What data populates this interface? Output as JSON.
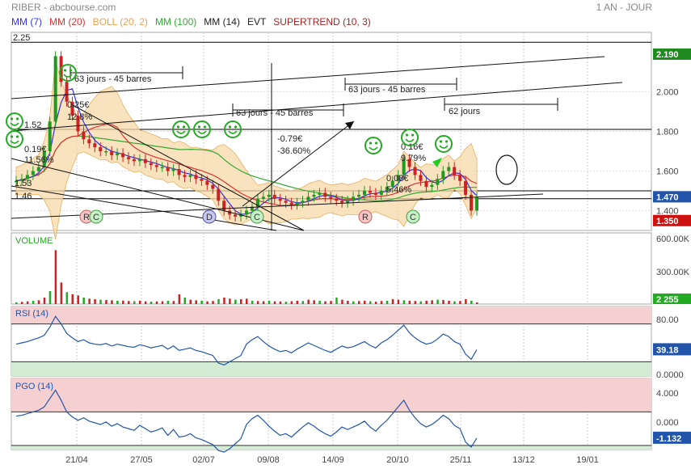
{
  "header": {
    "title": "RIBER - abcbourse.com",
    "period": "1 AN - JOUR"
  },
  "indicators": [
    {
      "label": "MM (7)",
      "color": "#3333dd"
    },
    {
      "label": "MM (20)",
      "color": "#dd3333"
    },
    {
      "label": "BOLL (20, 2)",
      "color": "#f0a050"
    },
    {
      "label": "MM (100)",
      "color": "#33aa33"
    },
    {
      "label": "MM (14)",
      "color": "#222222"
    },
    {
      "label": "EVT",
      "color": "#222222"
    },
    {
      "label": "SUPERTREND (10, 3)",
      "color": "#aa2222"
    }
  ],
  "chart_data": [
    {
      "type": "candlestick",
      "panel": "price",
      "ylim": [
        1.3,
        2.3
      ],
      "yticks": [
        "2.000",
        "1.800",
        "1.600",
        "1.400"
      ],
      "top_value_label": "2.25",
      "price_tags": [
        {
          "value": "2.190",
          "y": 2.19,
          "color": "#1f8a1f"
        },
        {
          "value": "1.470",
          "y": 1.47,
          "color": "#2255aa"
        },
        {
          "value": "1.350",
          "y": 1.35,
          "color": "#cc1111"
        }
      ],
      "hlines": [
        2.25,
        1.81,
        1.5,
        1.46
      ],
      "annotations": [
        {
          "text": "63 jours - 45 barres"
        },
        {
          "text": "63 jours - 45 barres"
        },
        {
          "text": "63 jours - 45 barres"
        },
        {
          "text": "62 jours"
        },
        {
          "text": "0.25€"
        },
        {
          "text": "12.8%"
        },
        {
          "text": "0.19€"
        },
        {
          "text": "11.56%"
        },
        {
          "text": "-0.79€"
        },
        {
          "text": "-36.60%"
        },
        {
          "text": "0.16€"
        },
        {
          "text": "9.79%"
        },
        {
          "text": "0.08€"
        },
        {
          "text": "5.46%"
        },
        {
          "text": "1.53"
        },
        {
          "text": "1.46"
        },
        {
          "text": "1.52"
        }
      ],
      "markers": [
        "R",
        "C",
        "D",
        "C",
        "R",
        "C"
      ],
      "x_ticks": [
        "21/04",
        "27/05",
        "02/07",
        "09/08",
        "14/09",
        "20/10",
        "25/11",
        "13/12",
        "19/01"
      ],
      "series": [
        {
          "values": [
            1.55,
            1.56,
            1.58,
            1.6,
            1.62,
            1.7,
            1.85,
            2.18,
            2.05,
            1.95,
            1.88,
            1.8,
            1.76,
            1.74,
            1.72,
            1.7,
            1.7,
            1.68,
            1.69,
            1.67,
            1.66,
            1.65,
            1.66,
            1.64,
            1.63,
            1.62,
            1.62,
            1.6,
            1.61,
            1.58,
            1.57,
            1.58,
            1.56,
            1.55,
            1.53,
            1.51,
            1.45,
            1.4,
            1.38,
            1.37,
            1.38,
            1.4,
            1.42,
            1.46,
            1.47,
            1.48,
            1.46,
            1.45,
            1.44,
            1.43,
            1.44,
            1.45,
            1.47,
            1.48,
            1.49,
            1.47,
            1.46,
            1.45,
            1.44,
            1.45,
            1.47,
            1.48,
            1.5,
            1.49,
            1.48,
            1.5,
            1.52,
            1.55,
            1.58,
            1.66,
            1.62,
            1.58,
            1.55,
            1.52,
            1.53,
            1.56,
            1.6,
            1.62,
            1.58,
            1.55,
            1.48,
            1.4,
            1.47
          ]
        }
      ]
    },
    {
      "type": "bar",
      "panel": "volume",
      "label": "VOLUME",
      "yticks": [
        "600.00K",
        "300.00K"
      ],
      "value_tag": "2 255",
      "ylim": [
        0,
        600000
      ],
      "values": [
        15000,
        20000,
        25000,
        30000,
        35000,
        60000,
        120000,
        500000,
        200000,
        110000,
        90000,
        80000,
        60000,
        50000,
        45000,
        40000,
        38000,
        35000,
        30000,
        32000,
        28000,
        26000,
        30000,
        25000,
        22000,
        24000,
        26000,
        30000,
        28000,
        90000,
        60000,
        40000,
        35000,
        30000,
        25000,
        28000,
        45000,
        60000,
        50000,
        40000,
        45000,
        50000,
        30000,
        28000,
        26000,
        30000,
        25000,
        24000,
        22000,
        26000,
        30000,
        28000,
        40000,
        35000,
        30000,
        25000,
        28000,
        60000,
        40000,
        30000,
        25000,
        28000,
        30000,
        26000,
        22000,
        28000,
        30000,
        45000,
        40000,
        35000,
        30000,
        28000,
        25000,
        30000,
        35000,
        40000,
        38000,
        30000,
        25000,
        28000,
        45000,
        30000,
        15000
      ]
    },
    {
      "type": "line",
      "panel": "rsi",
      "label": "RSI (14)",
      "yticks": [
        "80.00",
        "0.0000"
      ],
      "value_tag": "39.18",
      "ylim": [
        0,
        100
      ],
      "values": [
        48,
        50,
        52,
        55,
        58,
        62,
        75,
        92,
        80,
        65,
        58,
        52,
        55,
        50,
        48,
        47,
        49,
        45,
        48,
        46,
        44,
        43,
        47,
        45,
        42,
        44,
        46,
        40,
        45,
        38,
        40,
        42,
        38,
        36,
        33,
        30,
        18,
        15,
        20,
        25,
        30,
        48,
        55,
        60,
        52,
        45,
        40,
        36,
        38,
        34,
        40,
        45,
        50,
        46,
        42,
        38,
        35,
        40,
        45,
        42,
        44,
        48,
        52,
        46,
        42,
        50,
        55,
        62,
        70,
        78,
        66,
        58,
        52,
        48,
        50,
        56,
        64,
        60,
        52,
        48,
        32,
        24,
        39.18
      ]
    },
    {
      "type": "line",
      "panel": "pgo",
      "label": "PGO (14)",
      "yticks": [
        "4.000",
        "0.000"
      ],
      "value_tag": "-1.132",
      "ylim": [
        -2.5,
        6
      ],
      "values": [
        1.5,
        1.6,
        1.8,
        2,
        2.2,
        2.6,
        3.6,
        4.6,
        3.4,
        2,
        1.4,
        1,
        1.3,
        0.9,
        0.7,
        0.5,
        0.8,
        0.3,
        0.6,
        0.2,
        0,
        -0.2,
        0.4,
        0,
        -0.4,
        -0.2,
        0.1,
        -0.8,
        -0.1,
        -1,
        -0.9,
        -0.6,
        -1.1,
        -1.3,
        -1.6,
        -1.9,
        -2.6,
        -2.8,
        -2.4,
        -1.8,
        -1.2,
        0.5,
        1.2,
        1.6,
        1,
        0.3,
        -0.3,
        -0.8,
        -0.6,
        -1,
        -0.4,
        0.2,
        0.7,
        0.3,
        -0.2,
        -0.6,
        -0.9,
        -0.4,
        0.2,
        -0.1,
        0.2,
        0.5,
        0.9,
        0.2,
        -0.3,
        0.4,
        1,
        1.8,
        2.6,
        3.4,
        2.2,
        1.3,
        0.6,
        0.2,
        0.5,
        1,
        1.6,
        1.2,
        0.4,
        0,
        -1.6,
        -2.2,
        -1.132
      ]
    }
  ]
}
